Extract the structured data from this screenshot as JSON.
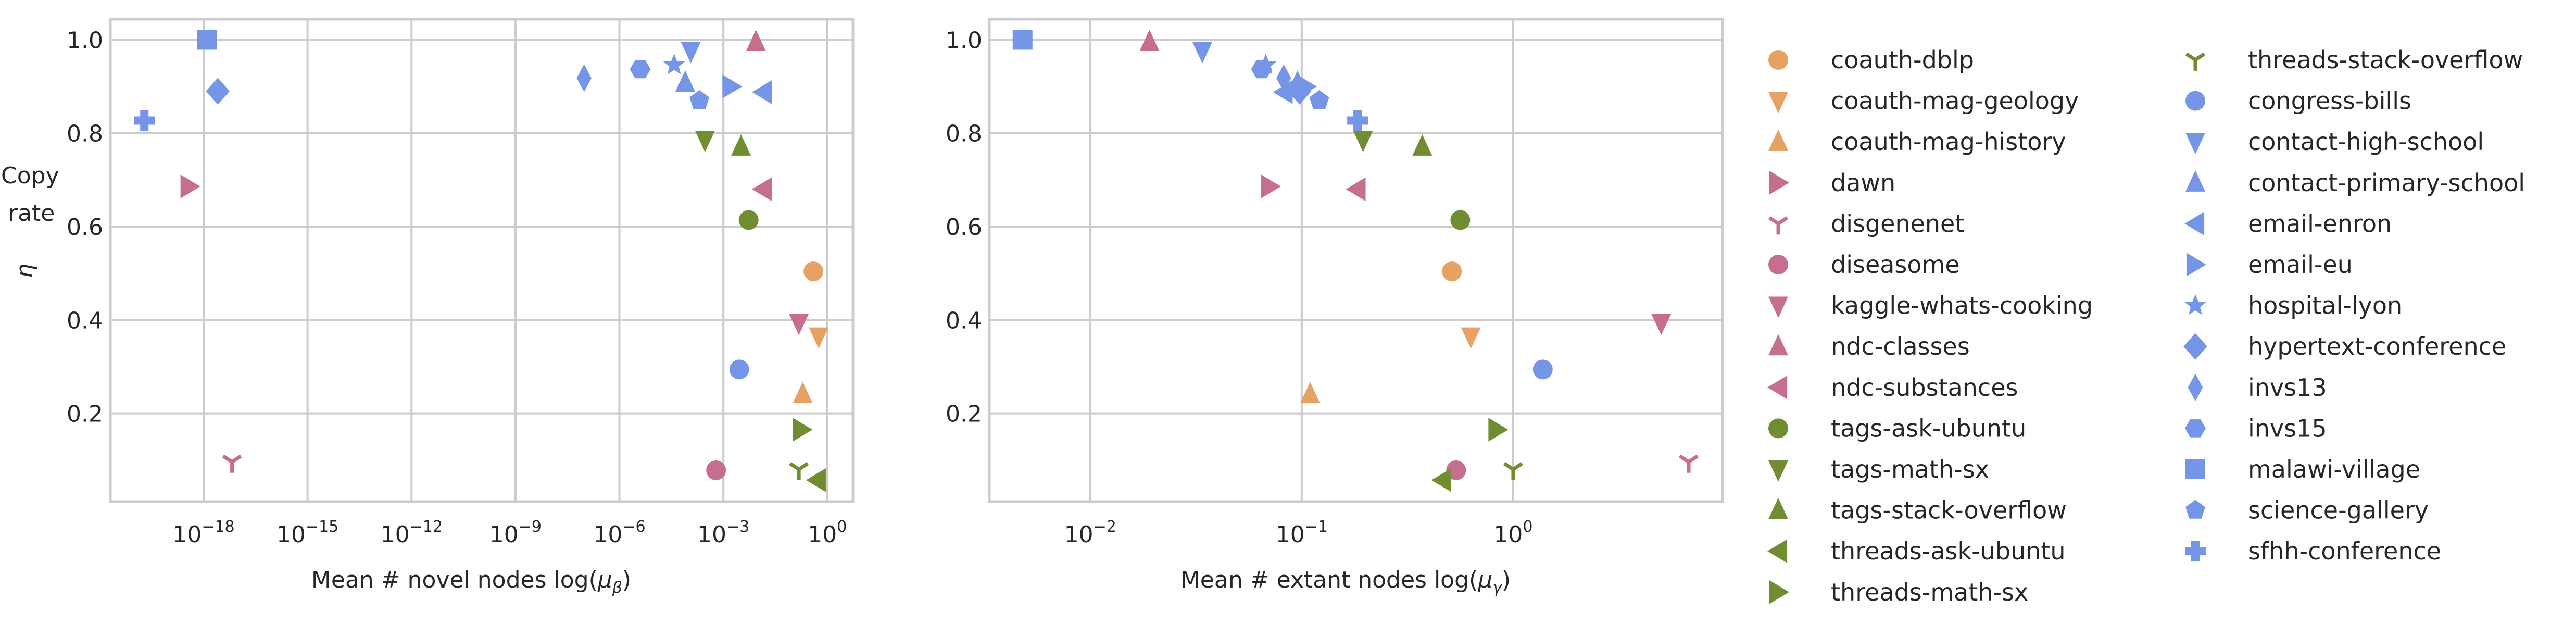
{
  "colors": {
    "orange": "#E5A263",
    "pink": "#C66E8F",
    "green": "#718D32",
    "blue": "#7595E8",
    "grid": "#CCCCCC",
    "text": "#262626"
  },
  "ylabel_lines": [
    "Copy",
    "rate"
  ],
  "ylabel_symbol": "η",
  "datasets": [
    {
      "name": "coauth-dblp",
      "color": "orange",
      "marker": "circle",
      "log10_mu_beta": -0.4,
      "log10_mu_gamma": -0.29,
      "eta": 0.504
    },
    {
      "name": "coauth-mag-geology",
      "color": "orange",
      "marker": "triangle-down",
      "log10_mu_beta": -0.25,
      "log10_mu_gamma": -0.2,
      "eta": 0.365
    },
    {
      "name": "coauth-mag-history",
      "color": "orange",
      "marker": "triangle-up",
      "log10_mu_beta": -0.71,
      "log10_mu_gamma": -0.96,
      "eta": 0.241
    },
    {
      "name": "dawn",
      "color": "pink",
      "marker": "triangle-right",
      "log10_mu_beta": -18.41,
      "log10_mu_gamma": -1.15,
      "eta": 0.686
    },
    {
      "name": "disgenenet",
      "color": "pink",
      "marker": "tri-down",
      "log10_mu_beta": -17.18,
      "log10_mu_gamma": 0.83,
      "eta": 0.096
    },
    {
      "name": "diseasome",
      "color": "pink",
      "marker": "circle",
      "log10_mu_beta": -3.21,
      "log10_mu_gamma": -0.27,
      "eta": 0.078
    },
    {
      "name": "kaggle-whats-cooking",
      "color": "pink",
      "marker": "triangle-down",
      "log10_mu_beta": -0.82,
      "log10_mu_gamma": 0.7,
      "eta": 0.394
    },
    {
      "name": "ndc-classes",
      "color": "pink",
      "marker": "triangle-up",
      "log10_mu_beta": -2.06,
      "log10_mu_gamma": -1.72,
      "eta": 0.995
    },
    {
      "name": "ndc-substances",
      "color": "pink",
      "marker": "triangle-left",
      "log10_mu_beta": -1.86,
      "log10_mu_gamma": -0.74,
      "eta": 0.68
    },
    {
      "name": "tags-ask-ubuntu",
      "color": "green",
      "marker": "circle",
      "log10_mu_beta": -2.27,
      "log10_mu_gamma": -0.25,
      "eta": 0.614
    },
    {
      "name": "tags-math-sx",
      "color": "green",
      "marker": "triangle-down",
      "log10_mu_beta": -3.53,
      "log10_mu_gamma": -0.71,
      "eta": 0.786
    },
    {
      "name": "tags-stack-overflow",
      "color": "green",
      "marker": "triangle-up",
      "log10_mu_beta": -2.49,
      "log10_mu_gamma": -0.43,
      "eta": 0.771
    },
    {
      "name": "threads-ask-ubuntu",
      "color": "green",
      "marker": "triangle-left",
      "log10_mu_beta": -0.3,
      "log10_mu_gamma": -0.335,
      "eta": 0.057
    },
    {
      "name": "threads-math-sx",
      "color": "green",
      "marker": "triangle-right",
      "log10_mu_beta": -0.74,
      "log10_mu_gamma": -0.075,
      "eta": 0.165
    },
    {
      "name": "threads-stack-overflow",
      "color": "green",
      "marker": "tri-down",
      "log10_mu_beta": -0.82,
      "log10_mu_gamma": 0.0,
      "eta": 0.08
    },
    {
      "name": "congress-bills",
      "color": "blue",
      "marker": "circle",
      "log10_mu_beta": -2.54,
      "log10_mu_gamma": 0.14,
      "eta": 0.294
    },
    {
      "name": "contact-high-school",
      "color": "blue",
      "marker": "triangle-down",
      "log10_mu_beta": -3.94,
      "log10_mu_gamma": -1.47,
      "eta": 0.976
    },
    {
      "name": "contact-primary-school",
      "color": "blue",
      "marker": "triangle-up",
      "log10_mu_beta": -4.1,
      "log10_mu_gamma": -1.02,
      "eta": 0.908
    },
    {
      "name": "email-enron",
      "color": "blue",
      "marker": "triangle-left",
      "log10_mu_beta": -1.86,
      "log10_mu_gamma": -1.085,
      "eta": 0.888
    },
    {
      "name": "email-eu",
      "color": "blue",
      "marker": "triangle-right",
      "log10_mu_beta": -2.77,
      "log10_mu_gamma": -0.98,
      "eta": 0.9
    },
    {
      "name": "hospital-lyon",
      "color": "blue",
      "marker": "star",
      "log10_mu_beta": -4.42,
      "log10_mu_gamma": -1.17,
      "eta": 0.946
    },
    {
      "name": "hypertext-conference",
      "color": "blue",
      "marker": "diamond",
      "log10_mu_beta": -17.59,
      "log10_mu_gamma": -1.01,
      "eta": 0.89
    },
    {
      "name": "invs13",
      "color": "blue",
      "marker": "thin-diamond",
      "log10_mu_beta": -7.02,
      "log10_mu_gamma": -1.085,
      "eta": 0.918
    },
    {
      "name": "invs15",
      "color": "blue",
      "marker": "hexagon",
      "log10_mu_beta": -5.4,
      "log10_mu_gamma": -1.19,
      "eta": 0.937
    },
    {
      "name": "malawi-village",
      "color": "blue",
      "marker": "square",
      "log10_mu_beta": -17.9,
      "log10_mu_gamma": -2.32,
      "eta": 1.0
    },
    {
      "name": "science-gallery",
      "color": "blue",
      "marker": "pentagon",
      "log10_mu_beta": -3.69,
      "log10_mu_gamma": -0.917,
      "eta": 0.87
    },
    {
      "name": "sfhh-conference",
      "color": "blue",
      "marker": "plus",
      "log10_mu_beta": -19.71,
      "log10_mu_gamma": -0.736,
      "eta": 0.827
    }
  ],
  "chart_data": [
    {
      "type": "scatter",
      "title": "",
      "xlabel": "Mean # novel nodes log(μβ)",
      "xlabel_main": "Mean # novel nodes log(",
      "xlabel_mu": "μ",
      "xlabel_sub": "β",
      "xlabel_close": ")",
      "ylabel": "Copy rate η",
      "x_key": "log10_mu_beta",
      "y_key": "eta",
      "xscale": "log10",
      "xlim_log10": [
        -20.69,
        0.74
      ],
      "ylim": [
        0.011,
        1.044
      ],
      "xticks": [
        {
          "base": "10",
          "exp": "−18",
          "v": -18
        },
        {
          "base": "10",
          "exp": "−15",
          "v": -15
        },
        {
          "base": "10",
          "exp": "−12",
          "v": -12
        },
        {
          "base": "10",
          "exp": "−9",
          "v": -9
        },
        {
          "base": "10",
          "exp": "−6",
          "v": -6
        },
        {
          "base": "10",
          "exp": "−3",
          "v": -3
        },
        {
          "base": "10",
          "exp": "0",
          "v": 0
        }
      ],
      "yticks": [
        {
          "label": "0.2",
          "v": 0.2
        },
        {
          "label": "0.4",
          "v": 0.4
        },
        {
          "label": "0.6",
          "v": 0.6
        },
        {
          "label": "0.8",
          "v": 0.8
        },
        {
          "label": "1.0",
          "v": 1.0
        }
      ],
      "grid": true
    },
    {
      "type": "scatter",
      "title": "",
      "xlabel": "Mean # extant nodes log(μγ)",
      "xlabel_main": "Mean # extant nodes log(",
      "xlabel_mu": "μ",
      "xlabel_sub": "γ",
      "xlabel_close": ")",
      "ylabel": "",
      "x_key": "log10_mu_gamma",
      "y_key": "eta",
      "xscale": "log10",
      "xlim_log10": [
        -2.477,
        0.99
      ],
      "ylim": [
        0.011,
        1.044
      ],
      "xticks": [
        {
          "base": "10",
          "exp": "−2",
          "v": -2
        },
        {
          "base": "10",
          "exp": "−1",
          "v": -1
        },
        {
          "base": "10",
          "exp": "0",
          "v": 0
        }
      ],
      "yticks": [
        {
          "label": "0.2",
          "v": 0.2
        },
        {
          "label": "0.4",
          "v": 0.4
        },
        {
          "label": "0.6",
          "v": 0.6
        },
        {
          "label": "0.8",
          "v": 0.8
        },
        {
          "label": "1.0",
          "v": 1.0
        }
      ],
      "grid": true
    }
  ],
  "legend": {
    "placement": "right",
    "columns": 2
  }
}
